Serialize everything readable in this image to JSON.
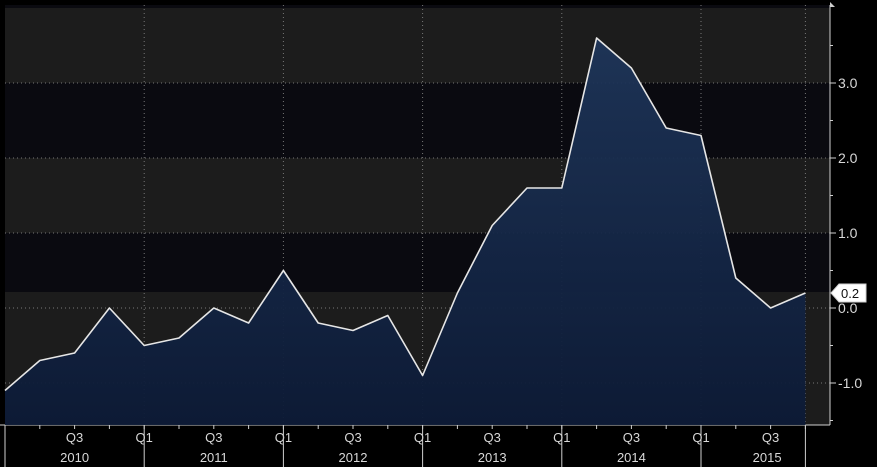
{
  "chart_data": {
    "type": "area",
    "title": "",
    "xlabel": "",
    "ylabel": "",
    "x": [
      "2010 Q1",
      "2010 Q2",
      "2010 Q3",
      "2010 Q4",
      "2011 Q1",
      "2011 Q2",
      "2011 Q3",
      "2011 Q4",
      "2012 Q1",
      "2012 Q2",
      "2012 Q3",
      "2012 Q4",
      "2013 Q1",
      "2013 Q2",
      "2013 Q3",
      "2013 Q4",
      "2014 Q1",
      "2014 Q2",
      "2014 Q3",
      "2014 Q4",
      "2015 Q1",
      "2015 Q2",
      "2015 Q3",
      "2015 Q4"
    ],
    "values": [
      -1.1,
      -0.7,
      -0.6,
      0.0,
      -0.5,
      -0.4,
      0.0,
      -0.2,
      0.5,
      -0.2,
      -0.3,
      -0.1,
      -0.9,
      0.2,
      1.1,
      1.6,
      1.6,
      3.6,
      3.2,
      2.4,
      2.3,
      0.4,
      0.0,
      0.2
    ],
    "ylim": [
      -1.6,
      4.0
    ],
    "yticks": [
      -1.0,
      0.0,
      1.0,
      2.0,
      3.0
    ],
    "ytick_labels": [
      "-1.0",
      "0.0",
      "1.0",
      "2.0",
      "3.0"
    ],
    "quarter_ticks": [
      "Q3",
      "Q1",
      "Q3",
      "Q1",
      "Q3",
      "Q1",
      "Q3",
      "Q1",
      "Q3",
      "Q1",
      "Q3"
    ],
    "year_labels": [
      "2010",
      "2011",
      "2012",
      "2013",
      "2014",
      "2015"
    ],
    "last_value_label": "0.2",
    "grid": true,
    "colors": {
      "line": "#e6e6e6",
      "fill_top": "#1e3559",
      "fill_bottom": "#0c1a36",
      "band_dark": "#0a0a10",
      "band_light": "#1c1c1c",
      "grid": "#777777"
    }
  }
}
